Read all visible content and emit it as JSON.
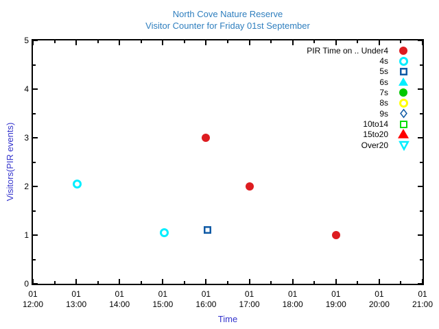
{
  "chart_data": {
    "type": "scatter",
    "title": "North Cove Nature Reserve",
    "subtitle": "Visitor Counter for Friday 01st September",
    "xlabel": "Time",
    "ylabel": "Visitors(PIR events)",
    "x_axis": {
      "start_hour": 12,
      "end_hour": 21,
      "minor_tick_hours": 0.5,
      "ticks": [
        {
          "day": "01",
          "time": "12:00"
        },
        {
          "day": "01",
          "time": "13:00"
        },
        {
          "day": "01",
          "time": "14:00"
        },
        {
          "day": "01",
          "time": "15:00"
        },
        {
          "day": "01",
          "time": "16:00"
        },
        {
          "day": "01",
          "time": "17:00"
        },
        {
          "day": "01",
          "time": "18:00"
        },
        {
          "day": "01",
          "time": "19:00"
        },
        {
          "day": "01",
          "time": "20:00"
        },
        {
          "day": "01",
          "time": "21:00"
        }
      ]
    },
    "y_axis": {
      "min": 0,
      "max": 5,
      "minor_step": 0.5,
      "ticks": [
        "0",
        "1",
        "2",
        "3",
        "4",
        "5"
      ]
    },
    "legend": {
      "position": "top-right-inside",
      "entries": [
        {
          "label": "PIR Time on .. Under4",
          "marker": {
            "shape": "circle",
            "color": "#dd1c20",
            "fill": true,
            "size": 12
          }
        },
        {
          "label": "4s",
          "marker": {
            "shape": "circle",
            "color": "#00eeff",
            "fill": false,
            "size": 13,
            "stroke": 3
          }
        },
        {
          "label": "5s",
          "marker": {
            "shape": "square",
            "color": "#0f5aa5",
            "fill": false,
            "size": 11,
            "stroke": 2.5
          }
        },
        {
          "label": "6s",
          "marker": {
            "shape": "triangle-up",
            "color": "#00eeff",
            "fill": true,
            "size": 14
          }
        },
        {
          "label": "7s",
          "marker": {
            "shape": "circle",
            "color": "#00c800",
            "fill": true,
            "size": 12
          }
        },
        {
          "label": "8s",
          "marker": {
            "shape": "circle",
            "color": "#ffff00",
            "fill": false,
            "size": 13,
            "stroke": 3
          }
        },
        {
          "label": "9s",
          "marker": {
            "shape": "diamond",
            "color": "#0f5aa5",
            "fill": false,
            "size": 13,
            "stroke": 1.5
          }
        },
        {
          "label": "10to14",
          "marker": {
            "shape": "square",
            "color": "#00dc00",
            "fill": false,
            "size": 11,
            "stroke": 2
          }
        },
        {
          "label": "15to20",
          "marker": {
            "shape": "triangle-up",
            "color": "#ff0000",
            "fill": true,
            "size": 16
          }
        },
        {
          "label": "Over20",
          "marker": {
            "shape": "triangle-down",
            "color": "#00eeff",
            "fill": false,
            "size": 14,
            "stroke": 2.5
          }
        }
      ]
    },
    "series": [
      {
        "name": "PIR Time on .. Under4",
        "legend_index": 0,
        "points": [
          {
            "time": "16:00",
            "value": 3.0
          },
          {
            "time": "17:00",
            "value": 2.0
          },
          {
            "time": "19:00",
            "value": 1.0
          }
        ]
      },
      {
        "name": "4s",
        "legend_index": 1,
        "points": [
          {
            "time": "13:01",
            "value": 2.05
          },
          {
            "time": "15:02",
            "value": 1.05
          }
        ]
      },
      {
        "name": "5s",
        "legend_index": 2,
        "points": [
          {
            "time": "16:02",
            "value": 1.1
          }
        ]
      }
    ],
    "colors": {
      "title": "#2e7ebe",
      "axis_label": "#3333cc",
      "tick_text": "#000000",
      "plot_border": "#000000"
    }
  }
}
